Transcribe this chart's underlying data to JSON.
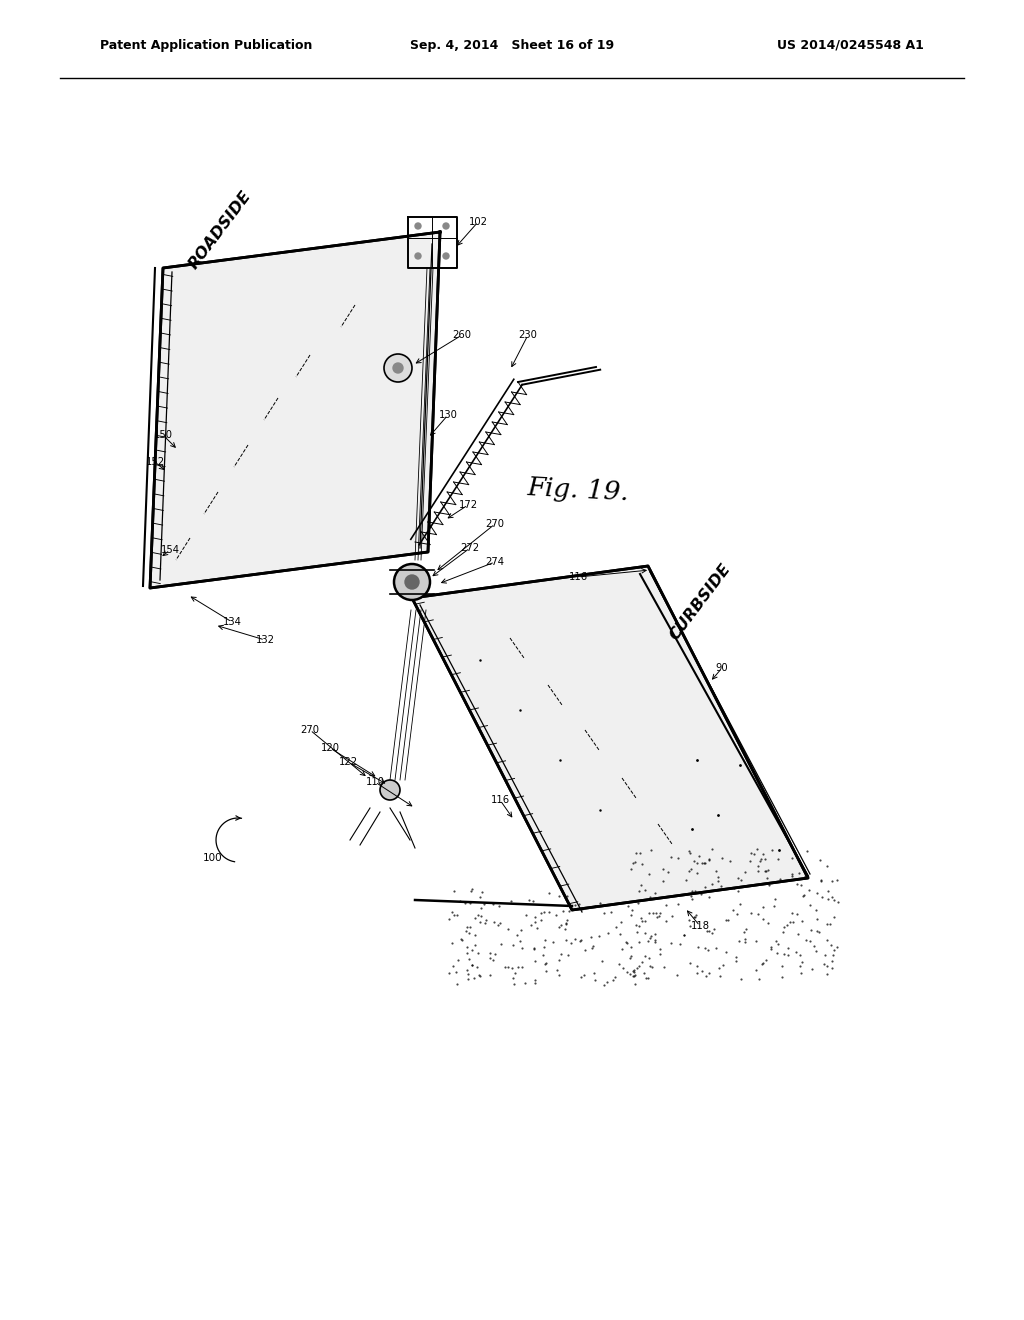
{
  "header_left": "Patent Application Publication",
  "header_center": "Sep. 4, 2014   Sheet 16 of 19",
  "header_right": "US 2014/0245548 A1",
  "fig_label": "Fig. 19.",
  "bg_color": "#ffffff"
}
